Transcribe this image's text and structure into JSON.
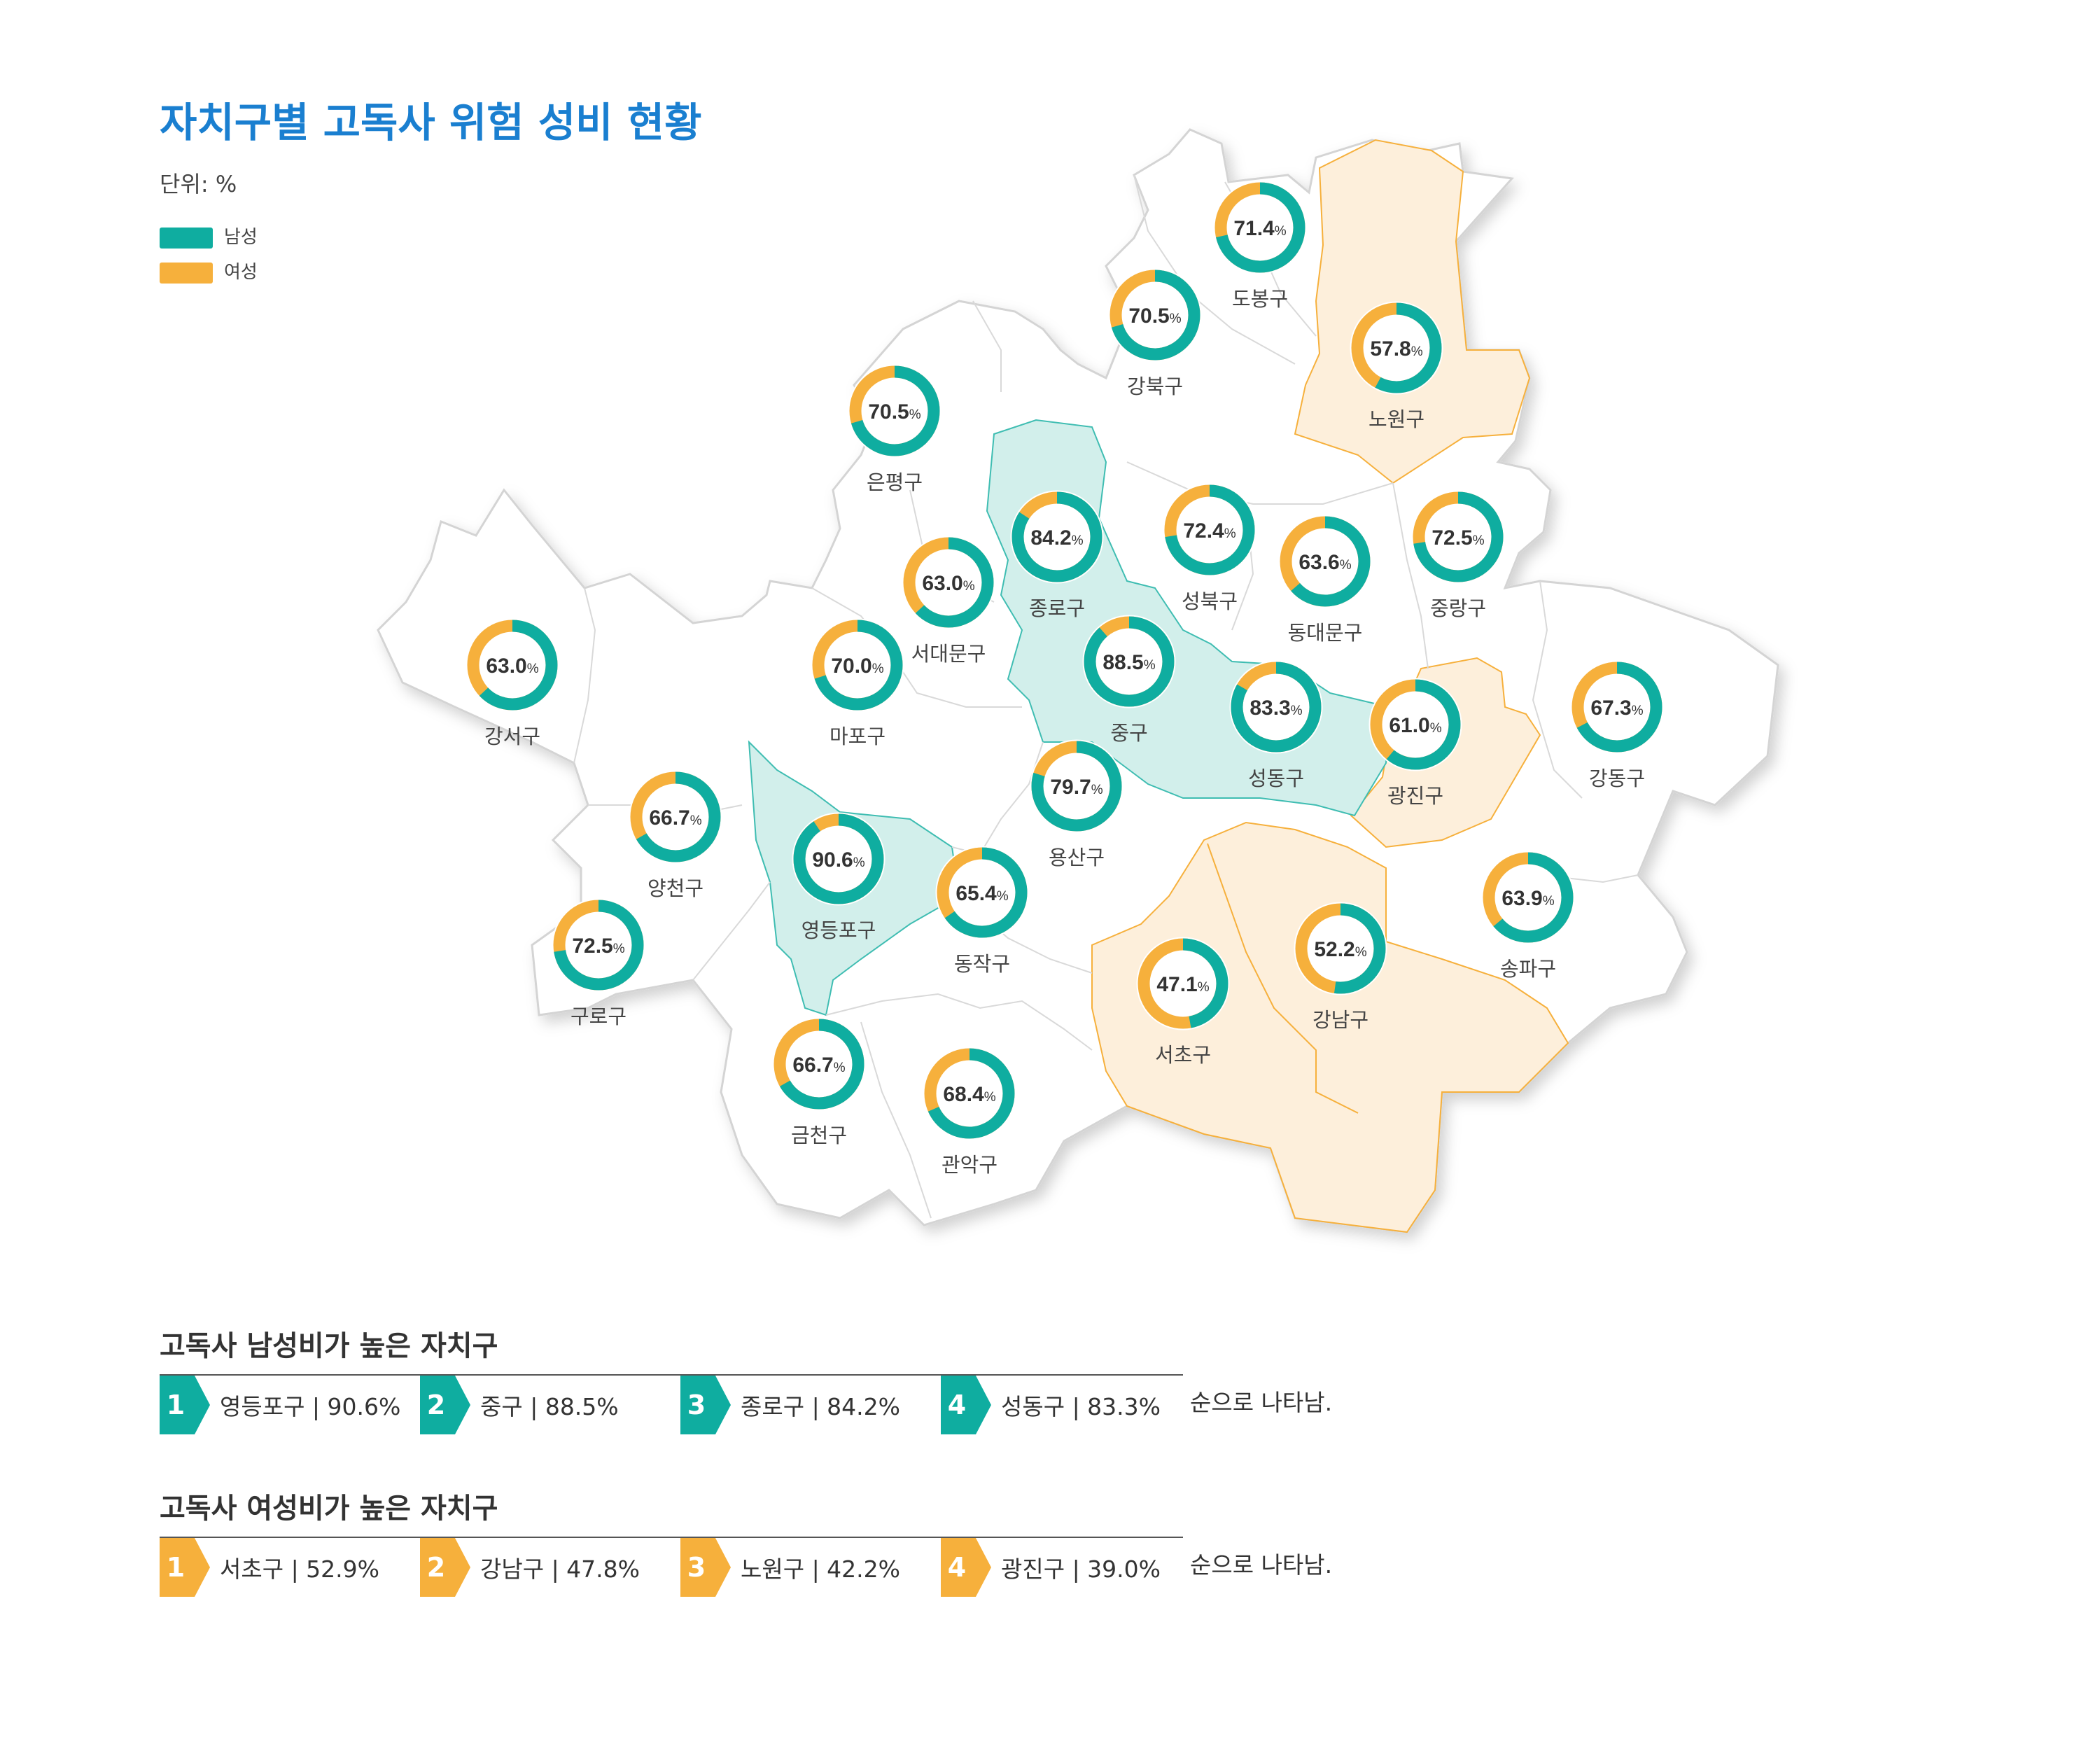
{
  "title": "자치구별 고독사 위험 성비 현황",
  "unit": "단위: %",
  "legend": {
    "male": {
      "label": "남성",
      "color": "#0fada0"
    },
    "female": {
      "label": "여성",
      "color": "#f6b03c"
    }
  },
  "chart_data": {
    "type": "donut-map",
    "district_suffix": "%",
    "districts": [
      {
        "name": "도봉구",
        "male": 71.4,
        "label": "71.4"
      },
      {
        "name": "노원구",
        "male": 57.8,
        "label": "57.8"
      },
      {
        "name": "강북구",
        "male": 70.5,
        "label": "70.5"
      },
      {
        "name": "은평구",
        "male": 70.5,
        "label": "70.5"
      },
      {
        "name": "종로구",
        "male": 84.2,
        "label": "84.2"
      },
      {
        "name": "성북구",
        "male": 72.4,
        "label": "72.4"
      },
      {
        "name": "동대문구",
        "male": 63.6,
        "label": "63.6"
      },
      {
        "name": "중랑구",
        "male": 72.5,
        "label": "72.5"
      },
      {
        "name": "서대문구",
        "male": 63.0,
        "label": "63.0"
      },
      {
        "name": "마포구",
        "male": 70.0,
        "label": "70.0"
      },
      {
        "name": "중구",
        "male": 88.5,
        "label": "88.5"
      },
      {
        "name": "성동구",
        "male": 83.3,
        "label": "83.3"
      },
      {
        "name": "광진구",
        "male": 61.0,
        "label": "61.0"
      },
      {
        "name": "강동구",
        "male": 67.3,
        "label": "67.3"
      },
      {
        "name": "강서구",
        "male": 63.0,
        "label": "63.0"
      },
      {
        "name": "양천구",
        "male": 66.7,
        "label": "66.7"
      },
      {
        "name": "영등포구",
        "male": 90.6,
        "label": "90.6"
      },
      {
        "name": "동작구",
        "male": 65.4,
        "label": "65.4"
      },
      {
        "name": "용산구",
        "male": 79.7,
        "label": "79.7"
      },
      {
        "name": "구로구",
        "male": 72.5,
        "label": "72.5"
      },
      {
        "name": "서초구",
        "male": 47.1,
        "label": "47.1"
      },
      {
        "name": "강남구",
        "male": 52.2,
        "label": "52.2"
      },
      {
        "name": "송파구",
        "male": 63.9,
        "label": "63.9"
      },
      {
        "name": "금천구",
        "male": 66.7,
        "label": "66.7"
      },
      {
        "name": "관악구",
        "male": 68.4,
        "label": "68.4"
      }
    ]
  },
  "male_section": {
    "title": "고독사 남성비가 높은 자치구",
    "ranks": [
      {
        "num": "1",
        "label": "영등포구 | 90.6%"
      },
      {
        "num": "2",
        "label": "중구 | 88.5%"
      },
      {
        "num": "3",
        "label": "종로구 | 84.2%"
      },
      {
        "num": "4",
        "label": "성동구 | 83.3%"
      }
    ],
    "suffix": "순으로 나타남."
  },
  "female_section": {
    "title": "고독사 여성비가 높은 자치구",
    "ranks": [
      {
        "num": "1",
        "label": "서초구 | 52.9%"
      },
      {
        "num": "2",
        "label": "강남구 | 47.8%"
      },
      {
        "num": "3",
        "label": "노원구 | 42.2%"
      },
      {
        "num": "4",
        "label": "광진구 | 39.0%"
      }
    ],
    "suffix": "순으로 나타남."
  }
}
